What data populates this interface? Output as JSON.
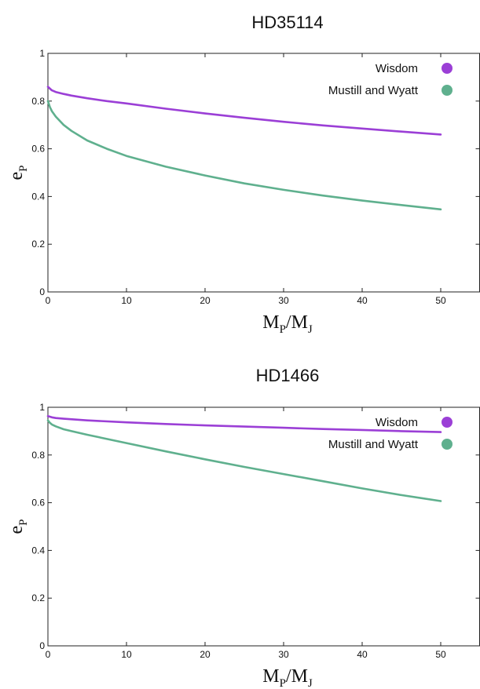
{
  "chart_data": [
    {
      "type": "line",
      "title": "HD35114",
      "xlabel": {
        "main": "M",
        "sub1": "P",
        "mid": "/M",
        "sub2": "J"
      },
      "ylabel": {
        "main": "e",
        "sub": "P"
      },
      "xlim": [
        0,
        55
      ],
      "ylim": [
        0,
        1
      ],
      "xticks": [
        0,
        10,
        20,
        30,
        40,
        50
      ],
      "yticks": [
        0,
        0.2,
        0.4,
        0.6,
        0.8,
        1
      ],
      "xtick_labels": [
        "0",
        "10",
        "20",
        "30",
        "40",
        "50"
      ],
      "ytick_labels": [
        "0",
        "0.2",
        "0.4",
        "0.6",
        "0.8",
        "1"
      ],
      "grid": false,
      "legend": "top-right",
      "series": [
        {
          "name": "Wisdom",
          "color": "#9b3fd6",
          "x": [
            0,
            0.5,
            1,
            2,
            3,
            5,
            7.5,
            10,
            15,
            20,
            25,
            30,
            35,
            40,
            45,
            50
          ],
          "y": [
            0.86,
            0.845,
            0.838,
            0.83,
            0.823,
            0.812,
            0.8,
            0.79,
            0.768,
            0.748,
            0.73,
            0.713,
            0.698,
            0.685,
            0.672,
            0.66
          ]
        },
        {
          "name": "Mustill and Wyatt",
          "color": "#5fb08e",
          "x": [
            0,
            0.25,
            0.5,
            1,
            2,
            3,
            5,
            7.5,
            10,
            15,
            20,
            25,
            30,
            35,
            40,
            45,
            50
          ],
          "y": [
            0.8,
            0.775,
            0.758,
            0.735,
            0.7,
            0.675,
            0.635,
            0.6,
            0.57,
            0.525,
            0.488,
            0.455,
            0.428,
            0.404,
            0.383,
            0.364,
            0.346
          ]
        }
      ]
    },
    {
      "type": "line",
      "title": "HD1466",
      "xlabel": {
        "main": "M",
        "sub1": "P",
        "mid": "/M",
        "sub2": "J"
      },
      "ylabel": {
        "main": "e",
        "sub": "P"
      },
      "xlim": [
        0,
        55
      ],
      "ylim": [
        0,
        1
      ],
      "xticks": [
        0,
        10,
        20,
        30,
        40,
        50
      ],
      "yticks": [
        0,
        0.2,
        0.4,
        0.6,
        0.8,
        1
      ],
      "xtick_labels": [
        "0",
        "10",
        "20",
        "30",
        "40",
        "50"
      ],
      "ytick_labels": [
        "0",
        "0.2",
        "0.4",
        "0.6",
        "0.8",
        "1"
      ],
      "grid": false,
      "legend": "top-right",
      "series": [
        {
          "name": "Wisdom",
          "color": "#9b3fd6",
          "x": [
            0,
            0.5,
            1,
            2,
            5,
            10,
            15,
            20,
            25,
            30,
            35,
            40,
            45,
            50
          ],
          "y": [
            0.963,
            0.958,
            0.955,
            0.952,
            0.945,
            0.937,
            0.93,
            0.924,
            0.919,
            0.914,
            0.909,
            0.905,
            0.9,
            0.896
          ]
        },
        {
          "name": "Mustill and Wyatt",
          "color": "#5fb08e",
          "x": [
            0,
            0.25,
            0.5,
            1,
            2,
            3,
            5,
            10,
            15,
            20,
            25,
            30,
            35,
            40,
            45,
            50
          ],
          "y": [
            0.945,
            0.935,
            0.928,
            0.92,
            0.908,
            0.9,
            0.885,
            0.85,
            0.815,
            0.782,
            0.75,
            0.72,
            0.69,
            0.66,
            0.632,
            0.607
          ]
        }
      ]
    }
  ]
}
